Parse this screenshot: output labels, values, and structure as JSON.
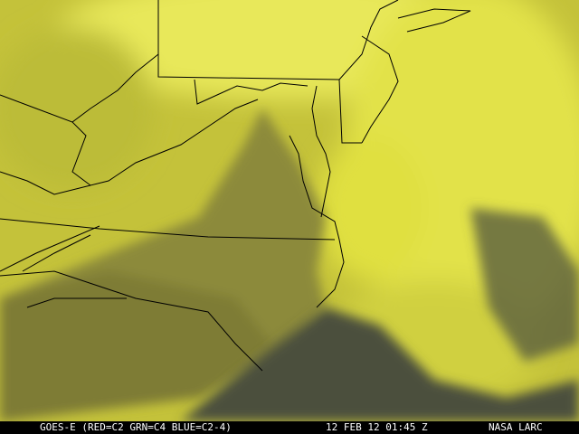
{
  "caption": {
    "satellite": "GOES-E (RED=C2 GRN=C4 BLUE=C2-4)",
    "datetime": "12 FEB 12 01:45 Z",
    "credit": "NASA LARC"
  },
  "imagery": {
    "type": "satellite false-color composite",
    "colors": {
      "cloud": "#e6e640",
      "land": "#8c8a38",
      "ocean_clear": "#4a4e3c",
      "boundary": "#000000"
    }
  }
}
